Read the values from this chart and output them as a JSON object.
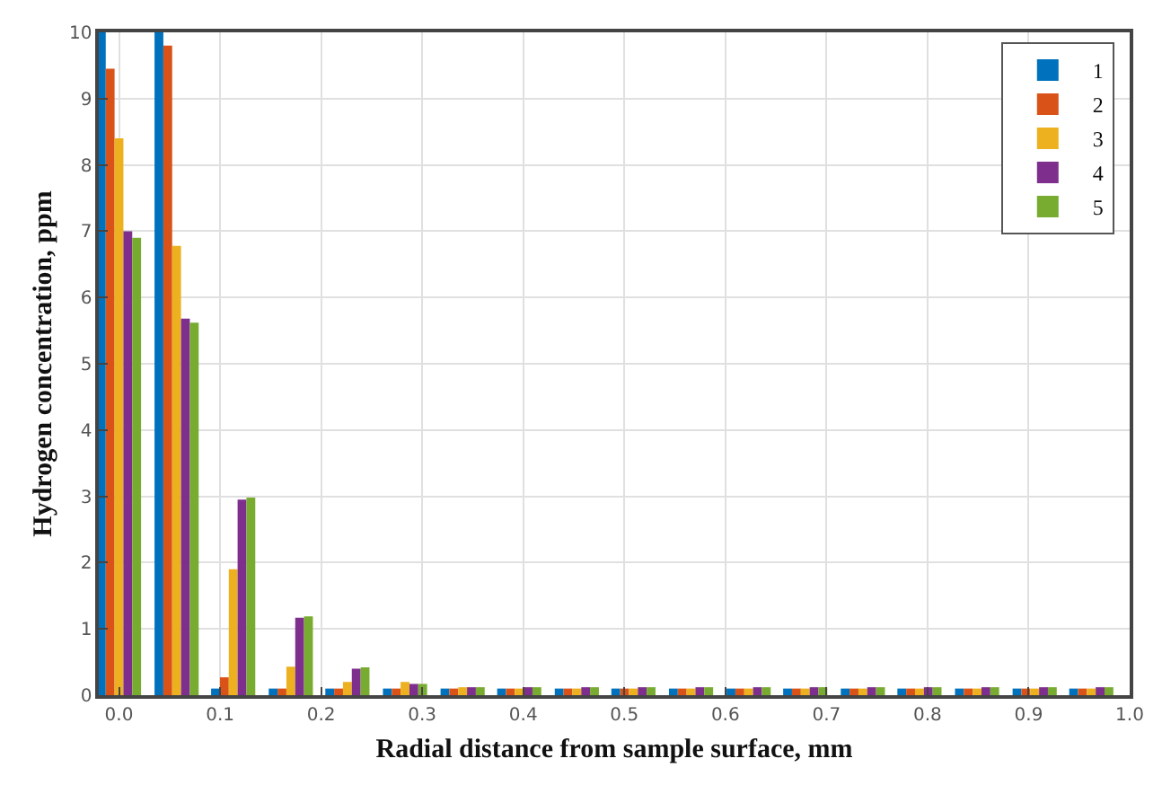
{
  "chart_data": {
    "type": "bar",
    "xlabel": "Radial distance from sample surface, mm",
    "ylabel": "Hydrogen concentration, ppm",
    "x": [
      0,
      0.057,
      0.113,
      0.17,
      0.226,
      0.283,
      0.34,
      0.396,
      0.453,
      0.509,
      0.566,
      0.623,
      0.679,
      0.736,
      0.792,
      0.849,
      0.906,
      0.962
    ],
    "series": [
      {
        "name": "1",
        "color": "#0072bd",
        "values": [
          10,
          10,
          0.1,
          0.1,
          0.1,
          0.1,
          0.1,
          0.1,
          0.1,
          0.1,
          0.1,
          0.1,
          0.1,
          0.1,
          0.1,
          0.1,
          0.1,
          0.1
        ]
      },
      {
        "name": "2",
        "color": "#d95319",
        "values": [
          9.45,
          9.8,
          0.27,
          0.1,
          0.1,
          0.1,
          0.1,
          0.1,
          0.1,
          0.1,
          0.1,
          0.1,
          0.1,
          0.1,
          0.1,
          0.1,
          0.1,
          0.1
        ]
      },
      {
        "name": "3",
        "color": "#edb120",
        "values": [
          8.4,
          6.78,
          1.9,
          0.43,
          0.2,
          0.2,
          0.12,
          0.1,
          0.1,
          0.1,
          0.1,
          0.1,
          0.1,
          0.1,
          0.1,
          0.1,
          0.1,
          0.1
        ]
      },
      {
        "name": "4",
        "color": "#7e2f8e",
        "values": [
          7.0,
          5.68,
          2.95,
          1.17,
          0.4,
          0.17,
          0.12,
          0.12,
          0.12,
          0.12,
          0.12,
          0.12,
          0.12,
          0.12,
          0.12,
          0.12,
          0.12,
          0.12
        ]
      },
      {
        "name": "5",
        "color": "#77ac30",
        "values": [
          6.9,
          5.62,
          2.98,
          1.19,
          0.42,
          0.17,
          0.12,
          0.12,
          0.12,
          0.12,
          0.12,
          0.12,
          0.12,
          0.12,
          0.12,
          0.12,
          0.12,
          0.12
        ]
      }
    ],
    "xlim": [
      -0.02,
      1.0
    ],
    "xticks": [
      {
        "value": 0,
        "label": "0.0"
      },
      0.1,
      0.2,
      0.3,
      0.4,
      0.5,
      0.6,
      0.7,
      0.8,
      0.9,
      {
        "value": 1,
        "label": "1.0"
      }
    ],
    "ylim": [
      0,
      10
    ],
    "yticks": [
      0,
      1,
      2,
      3,
      4,
      5,
      6,
      7,
      8,
      9,
      10
    ],
    "grid": true,
    "legend": "top right"
  }
}
